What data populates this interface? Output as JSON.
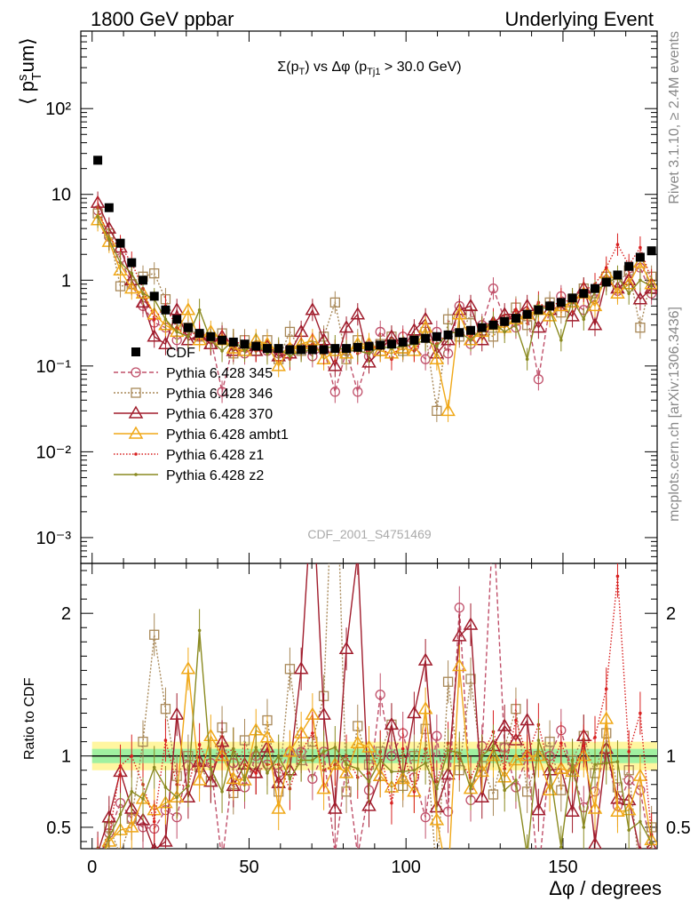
{
  "header": {
    "left": "1800 GeV ppbar",
    "right": "Underlying Event"
  },
  "side_labels": {
    "rivet": "Rivet 3.1.10, ≥ 2.4M events",
    "mcplots": "mcplots.cern.ch [arXiv:1306.3436]"
  },
  "chart_data": [
    {
      "type": "line",
      "panel": "main",
      "title": "Σ(pT) vs Δφ (pTj1 > 30.0 GeV)",
      "ylabel": "⟨ pT sum ⟩",
      "yscale": "log",
      "ylim": [
        0.0005,
        800
      ],
      "xlim": [
        -3.6,
        180
      ],
      "x_ticks": [
        0,
        50,
        100,
        150
      ],
      "y_tick_labels": [
        "10⁻³",
        "10⁻²",
        "10⁻¹",
        "1",
        "10",
        "10²"
      ],
      "watermark": "CDF_2001_S4751469",
      "x": [
        1.8,
        5.4,
        9.0,
        12.6,
        16.2,
        19.8,
        23.4,
        27.0,
        30.6,
        34.2,
        37.8,
        41.4,
        45.0,
        48.6,
        52.2,
        55.8,
        59.4,
        63.0,
        66.6,
        70.2,
        73.8,
        77.4,
        81.0,
        84.6,
        88.2,
        91.8,
        95.4,
        99.0,
        102.6,
        106.2,
        109.8,
        113.4,
        117.0,
        120.6,
        124.2,
        127.8,
        131.4,
        135.0,
        138.6,
        142.2,
        145.8,
        149.4,
        153.0,
        156.6,
        160.2,
        163.8,
        167.4,
        171.0,
        174.6,
        178.2
      ],
      "series": [
        {
          "name": "CDF",
          "color": "#000000",
          "marker": "square-filled",
          "values": [
            25,
            7,
            2.7,
            1.6,
            1.0,
            0.65,
            0.45,
            0.35,
            0.28,
            0.24,
            0.22,
            0.2,
            0.19,
            0.18,
            0.17,
            0.16,
            0.16,
            0.155,
            0.155,
            0.155,
            0.155,
            0.16,
            0.16,
            0.165,
            0.17,
            0.175,
            0.18,
            0.19,
            0.2,
            0.21,
            0.22,
            0.23,
            0.245,
            0.26,
            0.28,
            0.3,
            0.33,
            0.36,
            0.4,
            0.45,
            0.5,
            0.55,
            0.62,
            0.7,
            0.8,
            0.95,
            1.15,
            1.45,
            1.85,
            2.2
          ]
        },
        {
          "name": "Pythia 6.428 345",
          "color": "#c0506a",
          "marker": "circle-open",
          "dash": "5,3",
          "values": [
            6.5,
            3.2,
            1.8,
            0.9,
            0.5,
            0.32,
            0.28,
            0.2,
            0.26,
            0.22,
            0.21,
            0.05,
            0.18,
            0.14,
            0.17,
            0.15,
            0.14,
            0.16,
            0.16,
            0.13,
            0.16,
            0.05,
            0.15,
            0.05,
            0.13,
            0.25,
            0.18,
            0.22,
            0.17,
            0.12,
            0.25,
            0.14,
            0.5,
            0.18,
            0.3,
            0.8,
            0.35,
            0.28,
            0.4,
            0.07,
            0.5,
            0.65,
            0.55,
            0.45,
            0.6,
            1.0,
            0.75,
            1.2,
            1.4,
            0.7
          ]
        },
        {
          "name": "Pythia 6.428 346",
          "color": "#a88858",
          "marker": "square-open",
          "dash": "2,2",
          "values": [
            6.0,
            3.5,
            0.85,
            0.9,
            1.1,
            1.2,
            0.6,
            0.3,
            0.28,
            0.22,
            0.18,
            0.24,
            0.14,
            0.2,
            0.15,
            0.2,
            0.12,
            0.25,
            0.15,
            0.17,
            0.22,
            0.55,
            0.12,
            0.2,
            0.16,
            0.18,
            0.22,
            0.15,
            0.2,
            0.25,
            0.03,
            0.35,
            0.22,
            0.4,
            0.26,
            0.22,
            0.35,
            0.48,
            0.3,
            0.45,
            0.55,
            0.42,
            0.6,
            0.8,
            0.7,
            1.1,
            0.9,
            1.3,
            0.28,
            1.1
          ]
        },
        {
          "name": "Pythia 6.428 370",
          "color": "#a01c2c",
          "marker": "triangle-open",
          "values": [
            8.0,
            4.0,
            2.4,
            1.0,
            0.55,
            0.22,
            0.18,
            0.45,
            0.2,
            0.23,
            0.18,
            0.22,
            0.15,
            0.17,
            0.15,
            0.17,
            0.13,
            0.14,
            0.25,
            0.45,
            0.2,
            0.1,
            0.28,
            0.4,
            0.11,
            0.15,
            0.22,
            0.16,
            0.26,
            0.35,
            0.14,
            0.2,
            0.45,
            0.5,
            0.2,
            0.32,
            0.4,
            0.4,
            0.5,
            0.28,
            0.45,
            0.5,
            0.38,
            0.8,
            0.3,
            1.0,
            0.8,
            1.0,
            0.6,
            0.8
          ]
        },
        {
          "name": "Pythia 6.428 ambt1",
          "color": "#f0a818",
          "marker": "triangle-open",
          "values": [
            5.0,
            2.8,
            1.3,
            0.8,
            0.7,
            0.4,
            0.3,
            0.25,
            0.45,
            0.2,
            0.25,
            0.2,
            0.16,
            0.15,
            0.2,
            0.18,
            0.1,
            0.16,
            0.18,
            0.2,
            0.12,
            0.15,
            0.14,
            0.18,
            0.18,
            0.15,
            0.14,
            0.16,
            0.15,
            0.28,
            0.12,
            0.03,
            0.4,
            0.2,
            0.25,
            0.3,
            0.28,
            0.35,
            0.4,
            0.45,
            0.38,
            0.5,
            0.55,
            0.7,
            0.5,
            1.2,
            0.7,
            0.9,
            1.6,
            0.9
          ]
        },
        {
          "name": "Pythia 6.428 z1",
          "color": "#d82020",
          "marker": "dot",
          "dash": "1.5,2",
          "values": [
            7.0,
            3.0,
            2.5,
            1.6,
            0.8,
            0.35,
            0.5,
            0.28,
            0.22,
            0.26,
            0.2,
            0.2,
            0.2,
            0.17,
            0.15,
            0.15,
            0.15,
            0.12,
            0.16,
            0.18,
            0.14,
            0.15,
            0.16,
            0.14,
            0.15,
            0.18,
            0.12,
            0.2,
            0.15,
            0.22,
            0.18,
            0.25,
            0.24,
            0.22,
            0.28,
            0.35,
            0.3,
            0.45,
            0.4,
            0.55,
            0.45,
            0.6,
            0.55,
            0.75,
            0.9,
            1.4,
            2.6,
            1.5,
            2.4,
            1.0
          ]
        },
        {
          "name": "Pythia 6.428 z2",
          "color": "#8a8a20",
          "marker": "dot",
          "values": [
            5.5,
            3.0,
            1.6,
            1.2,
            0.7,
            0.6,
            0.35,
            0.25,
            0.22,
            0.45,
            0.2,
            0.15,
            0.2,
            0.15,
            0.18,
            0.14,
            0.16,
            0.13,
            0.15,
            0.15,
            0.16,
            0.17,
            0.15,
            0.15,
            0.14,
            0.17,
            0.16,
            0.17,
            0.18,
            0.2,
            0.17,
            0.24,
            0.25,
            0.2,
            0.28,
            0.32,
            0.25,
            0.3,
            0.12,
            0.5,
            0.45,
            0.2,
            0.6,
            0.35,
            0.75,
            0.9,
            1.1,
            0.7,
            1.0,
            0.85
          ]
        }
      ]
    },
    {
      "type": "line",
      "panel": "ratio",
      "ylabel": "Ratio to CDF",
      "xlabel": "Δφ / degrees",
      "ylim": [
        0.35,
        2.35
      ],
      "y_ticks": [
        0.5,
        1,
        2
      ],
      "reference_band": {
        "inner": [
          0.95,
          1.05
        ],
        "outer": [
          0.9,
          1.1
        ]
      },
      "series": [
        {
          "name": "Pythia 6.428 345",
          "values": [
            0.26,
            0.46,
            0.67,
            0.56,
            0.5,
            0.49,
            0.62,
            0.57,
            0.93,
            0.92,
            0.95,
            0.25,
            0.95,
            0.78,
            1.0,
            0.94,
            0.88,
            1.03,
            1.03,
            0.84,
            1.03,
            0.31,
            0.94,
            0.3,
            0.76,
            1.43,
            1.0,
            1.16,
            0.85,
            0.57,
            1.14,
            0.61,
            2.04,
            0.69,
            1.07,
            2.67,
            1.06,
            0.78,
            1.0,
            0.16,
            1.0,
            1.18,
            0.89,
            0.64,
            0.75,
            1.05,
            0.65,
            0.83,
            0.76,
            0.32
          ]
        },
        {
          "name": "Pythia 6.428 346",
          "values": [
            0.24,
            0.5,
            0.31,
            0.56,
            1.1,
            1.85,
            1.33,
            0.86,
            1.0,
            0.92,
            0.82,
            1.2,
            0.74,
            1.11,
            0.88,
            1.25,
            0.75,
            1.61,
            0.97,
            1.1,
            1.42,
            3.44,
            0.75,
            1.21,
            0.94,
            1.03,
            1.22,
            0.79,
            1.0,
            1.19,
            0.14,
            1.52,
            0.9,
            1.54,
            0.93,
            0.73,
            1.06,
            1.33,
            0.75,
            1.0,
            1.1,
            0.76,
            0.97,
            1.14,
            0.88,
            1.16,
            0.78,
            0.9,
            0.15,
            0.5
          ]
        },
        {
          "name": "Pythia 6.428 370",
          "values": [
            0.32,
            0.57,
            0.89,
            0.63,
            0.55,
            0.34,
            0.4,
            1.29,
            0.71,
            0.96,
            0.82,
            1.1,
            0.79,
            0.94,
            0.88,
            1.06,
            0.81,
            0.9,
            1.61,
            2.9,
            1.29,
            0.63,
            1.75,
            2.42,
            0.65,
            0.86,
            1.22,
            0.84,
            1.3,
            1.67,
            0.64,
            0.87,
            1.84,
            1.92,
            0.71,
            1.07,
            1.21,
            1.11,
            1.25,
            0.62,
            0.9,
            0.91,
            0.61,
            1.14,
            0.38,
            1.05,
            0.7,
            0.69,
            0.32,
            0.36
          ]
        },
        {
          "name": "Pythia 6.428 ambt1",
          "values": [
            0.2,
            0.4,
            0.48,
            0.5,
            0.7,
            0.62,
            0.67,
            0.71,
            1.61,
            0.83,
            1.14,
            1.0,
            0.84,
            0.83,
            1.18,
            1.13,
            0.63,
            1.03,
            1.16,
            1.29,
            0.77,
            0.94,
            0.88,
            1.09,
            1.06,
            0.86,
            0.78,
            0.84,
            0.75,
            1.33,
            0.55,
            0.13,
            1.63,
            0.77,
            0.89,
            1.0,
            0.85,
            0.97,
            1.0,
            1.0,
            0.76,
            0.91,
            0.89,
            1.0,
            0.63,
            1.26,
            0.61,
            0.62,
            0.86,
            0.41
          ]
        },
        {
          "name": "Pythia 6.428 z1",
          "values": [
            0.28,
            0.43,
            0.93,
            1.0,
            0.8,
            0.54,
            1.11,
            0.8,
            0.79,
            1.08,
            0.91,
            1.0,
            1.05,
            0.94,
            0.88,
            0.94,
            0.94,
            0.77,
            1.03,
            1.16,
            0.9,
            0.94,
            1.0,
            0.85,
            0.88,
            1.03,
            0.67,
            1.05,
            0.75,
            1.05,
            0.82,
            1.09,
            0.98,
            0.85,
            1.0,
            1.17,
            0.91,
            1.25,
            1.0,
            1.22,
            0.9,
            1.09,
            0.89,
            1.07,
            1.13,
            1.47,
            2.26,
            1.03,
            1.3,
            0.45
          ]
        },
        {
          "name": "Pythia 6.428 z2",
          "values": [
            0.22,
            0.43,
            0.59,
            0.75,
            0.7,
            0.92,
            0.78,
            0.71,
            0.79,
            1.88,
            0.91,
            0.75,
            1.05,
            0.83,
            1.06,
            0.88,
            1.0,
            0.84,
            0.97,
            0.97,
            1.03,
            1.06,
            0.94,
            0.91,
            0.82,
            0.97,
            0.89,
            0.89,
            0.9,
            0.95,
            0.77,
            1.04,
            1.02,
            0.77,
            1.0,
            1.07,
            0.76,
            0.83,
            0.3,
            1.11,
            0.9,
            0.36,
            0.97,
            0.5,
            0.94,
            0.95,
            0.96,
            0.48,
            0.54,
            0.39
          ]
        }
      ]
    }
  ]
}
